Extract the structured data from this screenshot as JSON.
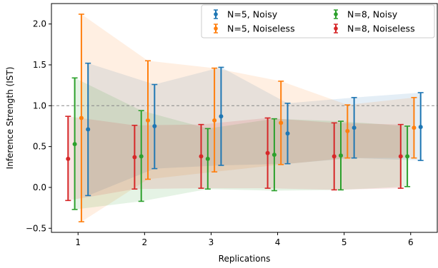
{
  "chart_data": {
    "type": "errorbar",
    "xlabel": "Replications",
    "ylabel": "Inference Strength (IST)",
    "xlim": [
      0.6,
      6.4
    ],
    "ylim": [
      -0.55,
      2.25
    ],
    "x_ticks": [
      "1",
      "2",
      "3",
      "4",
      "5",
      "6"
    ],
    "y_ticks": [
      "−0.5",
      "0.0",
      "0.5",
      "1.0",
      "1.5",
      "2.0"
    ],
    "y_tick_values": [
      -0.5,
      0.0,
      0.5,
      1.0,
      1.5,
      2.0
    ],
    "reference_line": 1.0,
    "legend_position": "top-right",
    "series": [
      {
        "name": "N=5, Noisy",
        "color": "#1f77b4",
        "x": [
          1.15,
          2.15,
          3.15,
          4.15,
          5.15,
          6.15
        ],
        "values": [
          0.71,
          0.75,
          0.87,
          0.66,
          0.73,
          0.74
        ],
        "lower": [
          -0.1,
          0.23,
          0.27,
          0.29,
          0.36,
          0.33
        ],
        "upper": [
          1.52,
          1.26,
          1.47,
          1.03,
          1.1,
          1.16
        ]
      },
      {
        "name": "N=5, Noiseless",
        "color": "#ff7f0e",
        "x": [
          1.05,
          2.05,
          3.05,
          4.05,
          5.05,
          6.05
        ],
        "values": [
          0.85,
          0.82,
          0.82,
          0.79,
          0.69,
          0.73
        ],
        "lower": [
          -0.42,
          0.1,
          0.19,
          0.28,
          0.36,
          0.36
        ],
        "upper": [
          2.12,
          1.55,
          1.46,
          1.3,
          1.01,
          1.1
        ]
      },
      {
        "name": "N=8, Noisy",
        "color": "#2ca02c",
        "x": [
          0.95,
          1.95,
          2.95,
          3.95,
          4.95,
          5.95
        ],
        "values": [
          0.53,
          0.38,
          0.35,
          0.4,
          0.39,
          0.38
        ],
        "lower": [
          -0.27,
          -0.17,
          -0.02,
          -0.04,
          -0.03,
          0.01
        ],
        "upper": [
          1.34,
          0.94,
          0.72,
          0.84,
          0.81,
          0.75
        ]
      },
      {
        "name": "N=8, Noiseless",
        "color": "#d62728",
        "x": [
          0.85,
          1.85,
          2.85,
          3.85,
          4.85,
          5.85
        ],
        "values": [
          0.35,
          0.37,
          0.38,
          0.42,
          0.38,
          0.38
        ],
        "lower": [
          -0.16,
          -0.02,
          -0.01,
          -0.01,
          -0.03,
          -0.01
        ],
        "upper": [
          0.87,
          0.76,
          0.77,
          0.85,
          0.79,
          0.77
        ]
      }
    ]
  }
}
